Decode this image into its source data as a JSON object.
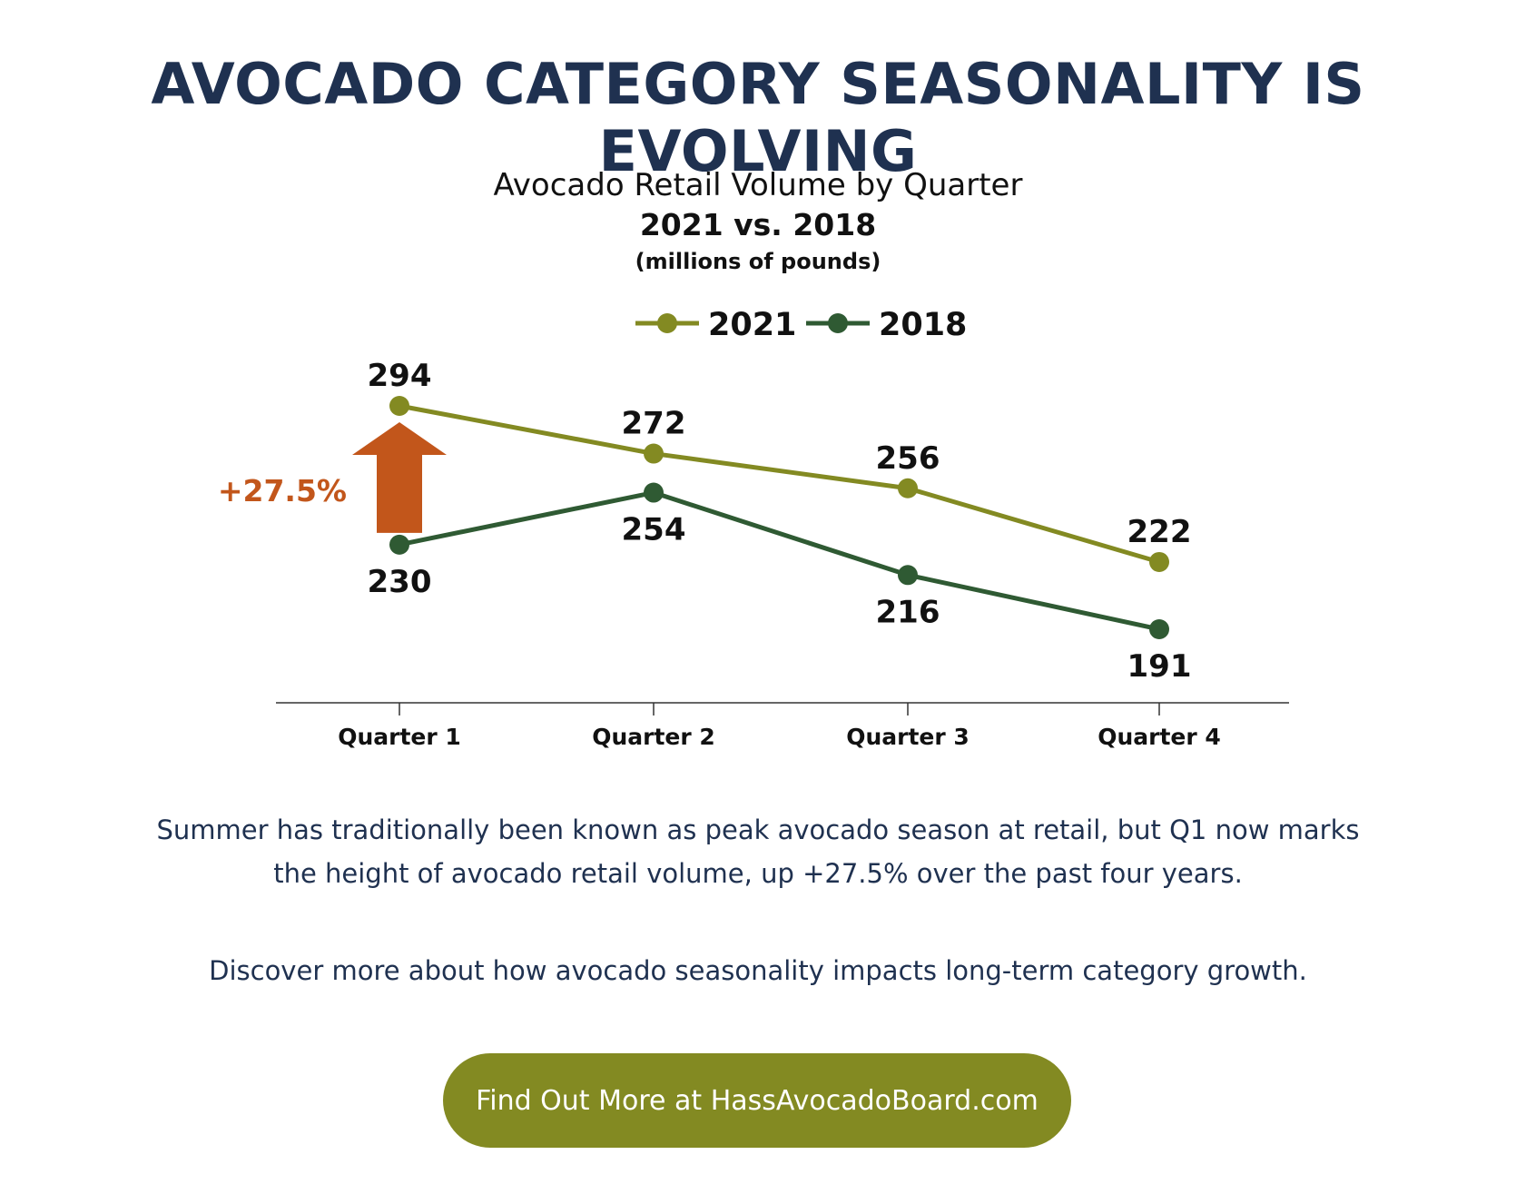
{
  "headline": "AVOCADO CATEGORY SEASONALITY IS EVOLVING",
  "body": {
    "paragraph1_line1": "Summer has traditionally been known as peak avocado season at retail, but Q1 now marks",
    "paragraph1_line2": "the height of avocado retail volume, up +27.5% over the past four years.",
    "paragraph2": "Discover more about how avocado seasonality impacts long-term category growth."
  },
  "cta": {
    "label": "Find Out More at HassAvocadoBoard.com"
  },
  "colors": {
    "series_2021": "#838a22",
    "series_2018": "#2f5a33",
    "growth_arrow": "#c2561b",
    "headline": "#1f3150",
    "cta_background": "#838a22"
  },
  "chart_data": {
    "type": "line",
    "title": "Avocado Retail Volume by Quarter",
    "subtitle": "2021 vs. 2018",
    "units_note": "(millions of pounds)",
    "categories": [
      "Quarter 1",
      "Quarter 2",
      "Quarter 3",
      "Quarter 4"
    ],
    "series": [
      {
        "name": "2021",
        "values": [
          294,
          272,
          256,
          222
        ],
        "label_position": "above"
      },
      {
        "name": "2018",
        "values": [
          230,
          254,
          216,
          191
        ],
        "label_position": "below"
      }
    ],
    "legend": "top-center",
    "grid": false,
    "y_axis_visible": false,
    "ylim": [
      155,
      310
    ],
    "annotation": {
      "text": "+27.5%",
      "category": "Quarter 1",
      "from_series": "2018",
      "to_series": "2021",
      "shape": "up-arrow"
    }
  }
}
